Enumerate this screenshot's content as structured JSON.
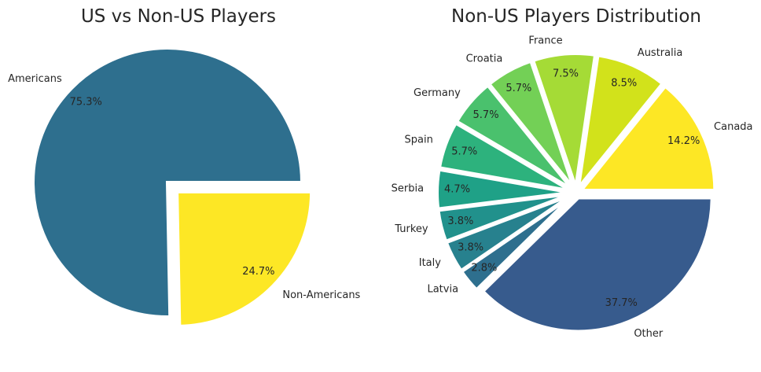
{
  "chart_data": [
    {
      "type": "pie",
      "title": "US vs Non-US Players",
      "slices": [
        {
          "label": "Americans",
          "value": 75.3,
          "pct_label": "75.3%",
          "color": "#2e6f8e"
        },
        {
          "label": "Non-Americans",
          "value": 24.7,
          "pct_label": "24.7%",
          "color": "#fde725",
          "exploded": true
        }
      ]
    },
    {
      "type": "pie",
      "title": "Non-US Players Distribution",
      "slices": [
        {
          "label": "Canada",
          "value": 14.2,
          "pct_label": "14.2%",
          "color": "#fde725"
        },
        {
          "label": "Australia",
          "value": 8.5,
          "pct_label": "8.5%",
          "color": "#d2e21b"
        },
        {
          "label": "France",
          "value": 7.5,
          "pct_label": "7.5%",
          "color": "#a5db36"
        },
        {
          "label": "Croatia",
          "value": 5.7,
          "pct_label": "5.7%",
          "color": "#73d056"
        },
        {
          "label": "Germany",
          "value": 5.7,
          "pct_label": "5.7%",
          "color": "#4ac16d"
        },
        {
          "label": "Spain",
          "value": 5.7,
          "pct_label": "5.7%",
          "color": "#2db27d"
        },
        {
          "label": "Serbia",
          "value": 4.7,
          "pct_label": "4.7%",
          "color": "#1fa187"
        },
        {
          "label": "Turkey",
          "value": 3.8,
          "pct_label": "3.8%",
          "color": "#21918c"
        },
        {
          "label": "Italy",
          "value": 3.8,
          "pct_label": "3.8%",
          "color": "#27818e"
        },
        {
          "label": "Latvia",
          "value": 2.8,
          "pct_label": "2.8%",
          "color": "#2e6f8e"
        },
        {
          "label": "Other",
          "value": 37.7,
          "pct_label": "37.7%",
          "color": "#375b8d"
        }
      ]
    }
  ]
}
